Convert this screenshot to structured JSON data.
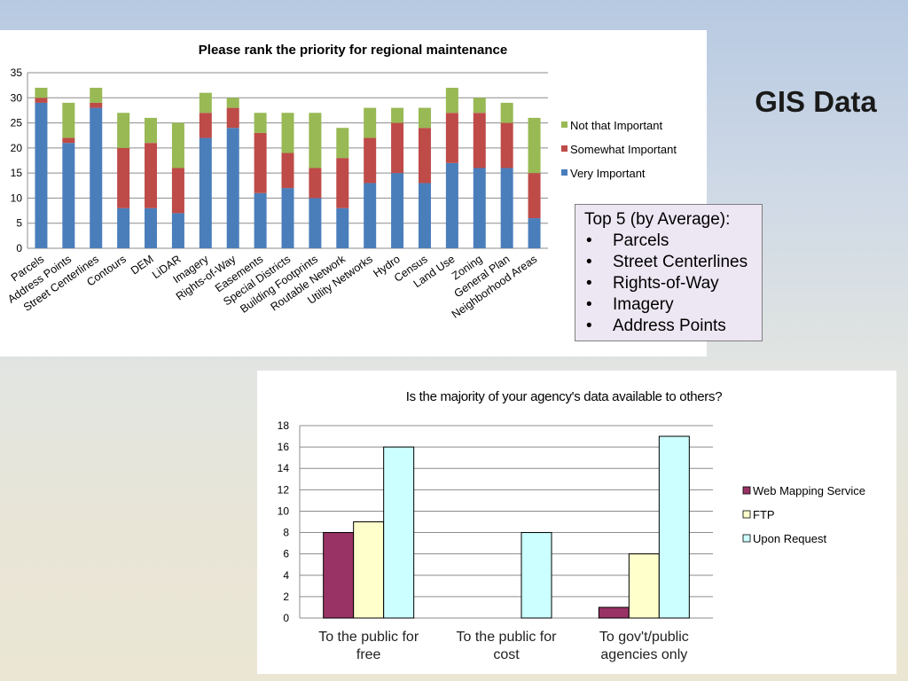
{
  "slide": {
    "title": "GIS Data"
  },
  "top5": {
    "heading": "Top 5 (by Average):",
    "items": [
      "Parcels",
      "Street Centerlines",
      "Rights-of-Way",
      "Imagery",
      "Address Points"
    ]
  },
  "colors": {
    "very": "#4a7ebb",
    "somewhat": "#be4b48",
    "not": "#98b954",
    "wms": "#993366",
    "ftp": "#ffffcc",
    "request": "#ccffff"
  },
  "chart_data": [
    {
      "type": "bar",
      "stacked": true,
      "title": "Please rank the priority for regional maintenance",
      "categories": [
        "Parcels",
        "Address Points",
        "Street Centerlines",
        "Contours",
        "DEM",
        "LiDAR",
        "Imagery",
        "Rights-of-Way",
        "Easements",
        "Special Districts",
        "Building Footprints",
        "Routable Network",
        "Utility Networks",
        "Hydro",
        "Census",
        "Land Use",
        "Zoning",
        "General Plan",
        "Neighborhood Areas"
      ],
      "series": [
        {
          "name": "Very Important",
          "color": "#4a7ebb",
          "values": [
            29,
            21,
            28,
            8,
            8,
            7,
            22,
            24,
            11,
            12,
            10,
            8,
            13,
            15,
            13,
            17,
            16,
            16,
            6
          ]
        },
        {
          "name": "Somewhat Important",
          "color": "#be4b48",
          "values": [
            1,
            1,
            1,
            12,
            13,
            9,
            5,
            4,
            12,
            7,
            6,
            10,
            9,
            10,
            11,
            10,
            11,
            9,
            9
          ]
        },
        {
          "name": "Not that Important",
          "color": "#98b954",
          "values": [
            2,
            7,
            3,
            7,
            5,
            9,
            4,
            2,
            4,
            8,
            11,
            6,
            6,
            3,
            4,
            5,
            3,
            4,
            11
          ]
        }
      ],
      "ylim": [
        0,
        35
      ],
      "yticks": [
        "0",
        "5",
        "10",
        "15",
        "20",
        "25",
        "30",
        "35"
      ],
      "legend": "right",
      "grid": true
    },
    {
      "type": "bar",
      "title": "Is the majority of your agency's data available to others?",
      "categories": [
        "To the public for free",
        "To the public for cost",
        "To gov't/public agencies only"
      ],
      "series": [
        {
          "name": "Web Mapping Service",
          "color": "#993366",
          "values": [
            8,
            0,
            1
          ]
        },
        {
          "name": "FTP",
          "color": "#ffffcc",
          "values": [
            9,
            0,
            6
          ]
        },
        {
          "name": "Upon Request",
          "color": "#ccffff",
          "values": [
            16,
            8,
            17
          ]
        }
      ],
      "ylim": [
        0,
        18
      ],
      "yticks": [
        "0",
        "2",
        "4",
        "6",
        "8",
        "10",
        "12",
        "14",
        "16",
        "18"
      ],
      "legend": "right",
      "grid": true
    }
  ]
}
